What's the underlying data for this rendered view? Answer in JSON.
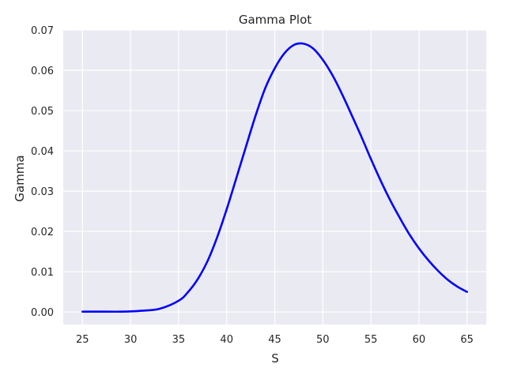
{
  "chart_data": {
    "type": "line",
    "title": "Gamma Plot",
    "xlabel": "S",
    "ylabel": "Gamma",
    "xlim": [
      23.0,
      67.0
    ],
    "ylim": [
      -0.0031,
      0.07
    ],
    "xticks": [
      25,
      30,
      35,
      40,
      45,
      50,
      55,
      60,
      65
    ],
    "yticks": [
      "0.00",
      "0.01",
      "0.02",
      "0.03",
      "0.04",
      "0.05",
      "0.06",
      "0.07"
    ],
    "grid": true,
    "background": "#EAEAF2",
    "series": [
      {
        "color": "#0000FF",
        "x": [
          25,
          27,
          29,
          31,
          33,
          35,
          36,
          37,
          38,
          39,
          40,
          41,
          42,
          43,
          44,
          45,
          46,
          47,
          48,
          49,
          50,
          51,
          52,
          53,
          54,
          55,
          56,
          57,
          58,
          59,
          60,
          61,
          62,
          63,
          64,
          65
        ],
        "y": [
          0.0001,
          0.0001,
          0.0001,
          0.0003,
          0.0008,
          0.0028,
          0.005,
          0.0082,
          0.0126,
          0.0185,
          0.0255,
          0.0332,
          0.041,
          0.0487,
          0.0555,
          0.0605,
          0.0642,
          0.0663,
          0.0666,
          0.0654,
          0.0626,
          0.0588,
          0.0541,
          0.0489,
          0.0436,
          0.038,
          0.0327,
          0.0278,
          0.0234,
          0.0193,
          0.0158,
          0.0128,
          0.0102,
          0.008,
          0.0063,
          0.005
        ]
      }
    ]
  }
}
